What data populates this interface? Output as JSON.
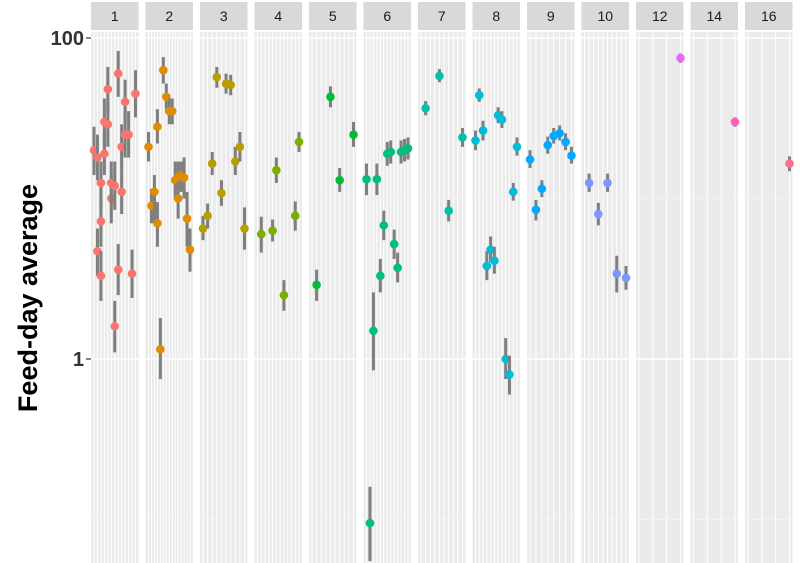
{
  "chart_data": {
    "type": "scatter",
    "title": "",
    "xlabel": "",
    "ylabel": "Feed-day average",
    "y_scale": "log10",
    "ylim": [
      0.05,
      180
    ],
    "y_ticks": [
      {
        "value": 1,
        "label": "1"
      },
      {
        "value": 100,
        "label": "100"
      }
    ],
    "grid": true,
    "legend": "none",
    "error_bar_color": "#7f7f7f",
    "panel_background": "#ebebeb",
    "strip_background": "#d9d9d9",
    "facets": [
      {
        "label": "1",
        "color": "#F8766D",
        "points": [
          {
            "x": 1,
            "y": 20,
            "lo": 14,
            "hi": 28
          },
          {
            "x": 2,
            "y": 18,
            "lo": 13,
            "hi": 25
          },
          {
            "x": 2,
            "y": 4.7,
            "lo": 3.3,
            "hi": 6.5
          },
          {
            "x": 3,
            "y": 7.2,
            "lo": 5,
            "hi": 10.5
          },
          {
            "x": 3,
            "y": 12.5,
            "lo": 9,
            "hi": 17
          },
          {
            "x": 3,
            "y": 3.3,
            "lo": 2.3,
            "hi": 4.7
          },
          {
            "x": 4,
            "y": 30,
            "lo": 21,
            "hi": 42
          },
          {
            "x": 4,
            "y": 19,
            "lo": 14,
            "hi": 26
          },
          {
            "x": 5,
            "y": 48,
            "lo": 34,
            "hi": 66
          },
          {
            "x": 5,
            "y": 29,
            "lo": 21,
            "hi": 40
          },
          {
            "x": 6,
            "y": 10,
            "lo": 7,
            "hi": 14
          },
          {
            "x": 6,
            "y": 12.5,
            "lo": 9,
            "hi": 17
          },
          {
            "x": 7,
            "y": 12,
            "lo": 8.5,
            "hi": 17
          },
          {
            "x": 7,
            "y": 1.6,
            "lo": 1.1,
            "hi": 2.3
          },
          {
            "x": 8,
            "y": 3.6,
            "lo": 2.5,
            "hi": 5.2
          },
          {
            "x": 8,
            "y": 60,
            "lo": 43,
            "hi": 83
          },
          {
            "x": 9,
            "y": 11,
            "lo": 8,
            "hi": 15
          },
          {
            "x": 9,
            "y": 21,
            "lo": 15,
            "hi": 29
          },
          {
            "x": 10,
            "y": 40,
            "lo": 29,
            "hi": 55
          },
          {
            "x": 10,
            "y": 25,
            "lo": 18,
            "hi": 35
          },
          {
            "x": 11,
            "y": 25,
            "lo": 18,
            "hi": 35
          },
          {
            "x": 12,
            "y": 3.4,
            "lo": 2.4,
            "hi": 4.8
          },
          {
            "x": 13,
            "y": 45,
            "lo": 32,
            "hi": 63
          }
        ]
      },
      {
        "label": "2",
        "color": "#DE8C00",
        "points": [
          {
            "x": 1,
            "y": 21,
            "lo": 17,
            "hi": 26
          },
          {
            "x": 2,
            "y": 9,
            "lo": 7,
            "hi": 11.5
          },
          {
            "x": 3,
            "y": 9,
            "lo": 7,
            "hi": 11.5
          },
          {
            "x": 3,
            "y": 11,
            "lo": 8.5,
            "hi": 14
          },
          {
            "x": 4,
            "y": 7,
            "lo": 5,
            "hi": 9.5
          },
          {
            "x": 4,
            "y": 28,
            "lo": 22,
            "hi": 36
          },
          {
            "x": 5,
            "y": 1.15,
            "lo": 0.75,
            "hi": 1.8
          },
          {
            "x": 6,
            "y": 63,
            "lo": 52,
            "hi": 76
          },
          {
            "x": 7,
            "y": 43,
            "lo": 36,
            "hi": 52
          },
          {
            "x": 8,
            "y": 35,
            "lo": 29,
            "hi": 42
          },
          {
            "x": 9,
            "y": 35,
            "lo": 29,
            "hi": 42
          },
          {
            "x": 10,
            "y": 13,
            "lo": 10,
            "hi": 17
          },
          {
            "x": 11,
            "y": 10,
            "lo": 7.5,
            "hi": 13
          },
          {
            "x": 11,
            "y": 13.5,
            "lo": 11,
            "hi": 17
          },
          {
            "x": 12,
            "y": 14,
            "lo": 11,
            "hi": 17
          },
          {
            "x": 13,
            "y": 13.5,
            "lo": 10,
            "hi": 18
          },
          {
            "x": 14,
            "y": 7.5,
            "lo": 5,
            "hi": 11
          },
          {
            "x": 15,
            "y": 4.8,
            "lo": 3.5,
            "hi": 6.5
          }
        ]
      },
      {
        "label": "3",
        "color": "#B79F00",
        "points": [
          {
            "x": 1,
            "y": 6.5,
            "lo": 5.5,
            "hi": 7.8
          },
          {
            "x": 2,
            "y": 7.8,
            "lo": 6.5,
            "hi": 9.3
          },
          {
            "x": 3,
            "y": 16.5,
            "lo": 14,
            "hi": 19.5
          },
          {
            "x": 4,
            "y": 57,
            "lo": 49,
            "hi": 66
          },
          {
            "x": 5,
            "y": 10.8,
            "lo": 9,
            "hi": 13
          },
          {
            "x": 6,
            "y": 52,
            "lo": 45,
            "hi": 60
          },
          {
            "x": 7,
            "y": 51,
            "lo": 44,
            "hi": 59
          },
          {
            "x": 8,
            "y": 17,
            "lo": 14,
            "hi": 21
          },
          {
            "x": 9,
            "y": 21,
            "lo": 17,
            "hi": 26
          },
          {
            "x": 10,
            "y": 6.5,
            "lo": 4.8,
            "hi": 8.8
          }
        ]
      },
      {
        "label": "4",
        "color": "#7CAE00",
        "points": [
          {
            "x": 2,
            "y": 6,
            "lo": 4.6,
            "hi": 7.7
          },
          {
            "x": 5,
            "y": 6.3,
            "lo": 5.4,
            "hi": 7.4
          },
          {
            "x": 6,
            "y": 15,
            "lo": 12.5,
            "hi": 18
          },
          {
            "x": 8,
            "y": 2.5,
            "lo": 2,
            "hi": 3.1
          },
          {
            "x": 11,
            "y": 7.8,
            "lo": 6.3,
            "hi": 9.6
          },
          {
            "x": 12,
            "y": 22.5,
            "lo": 19.5,
            "hi": 26
          }
        ]
      },
      {
        "label": "5",
        "color": "#00BA38",
        "points": [
          {
            "x": 2,
            "y": 2.9,
            "lo": 2.3,
            "hi": 3.6
          },
          {
            "x": 5,
            "y": 43,
            "lo": 37,
            "hi": 50
          },
          {
            "x": 7,
            "y": 13,
            "lo": 11,
            "hi": 15.5
          },
          {
            "x": 10,
            "y": 25,
            "lo": 21,
            "hi": 30
          }
        ]
      },
      {
        "label": "6",
        "color": "#00BF7D",
        "points": [
          {
            "x": 1,
            "y": 13.2,
            "lo": 10.5,
            "hi": 16.5
          },
          {
            "x": 2,
            "y": 0.095,
            "lo": 0.055,
            "hi": 0.16
          },
          {
            "x": 3,
            "y": 1.5,
            "lo": 0.85,
            "hi": 2.6
          },
          {
            "x": 4,
            "y": 13.2,
            "lo": 10.5,
            "hi": 16.5
          },
          {
            "x": 5,
            "y": 3.3,
            "lo": 2.6,
            "hi": 4.2
          },
          {
            "x": 6,
            "y": 6.8,
            "lo": 5.5,
            "hi": 8.4
          },
          {
            "x": 7,
            "y": 19,
            "lo": 16,
            "hi": 22.5
          },
          {
            "x": 8,
            "y": 19.5,
            "lo": 16.5,
            "hi": 23
          },
          {
            "x": 9,
            "y": 5.2,
            "lo": 4.2,
            "hi": 6.4
          },
          {
            "x": 10,
            "y": 3.7,
            "lo": 3,
            "hi": 4.6
          },
          {
            "x": 11,
            "y": 19.5,
            "lo": 16.5,
            "hi": 23
          },
          {
            "x": 12,
            "y": 20,
            "lo": 17,
            "hi": 23.5
          },
          {
            "x": 13,
            "y": 20.5,
            "lo": 17.5,
            "hi": 24
          }
        ]
      },
      {
        "label": "7",
        "color": "#00C1A3",
        "points": [
          {
            "x": 2,
            "y": 36.5,
            "lo": 33,
            "hi": 40.5
          },
          {
            "x": 5,
            "y": 58,
            "lo": 53,
            "hi": 64
          },
          {
            "x": 7,
            "y": 8.4,
            "lo": 7.2,
            "hi": 9.8
          },
          {
            "x": 10,
            "y": 24,
            "lo": 21,
            "hi": 27.5
          }
        ]
      },
      {
        "label": "8",
        "color": "#00BCD8",
        "points": [
          {
            "x": 1,
            "y": 23,
            "lo": 20,
            "hi": 26.5
          },
          {
            "x": 2,
            "y": 44,
            "lo": 40,
            "hi": 48.5
          },
          {
            "x": 3,
            "y": 26.5,
            "lo": 23,
            "hi": 30.5
          },
          {
            "x": 4,
            "y": 3.8,
            "lo": 3.1,
            "hi": 4.7
          },
          {
            "x": 5,
            "y": 4.8,
            "lo": 4,
            "hi": 5.8
          },
          {
            "x": 6,
            "y": 4.1,
            "lo": 3.4,
            "hi": 5
          },
          {
            "x": 7,
            "y": 33,
            "lo": 29.5,
            "hi": 37
          },
          {
            "x": 8,
            "y": 31,
            "lo": 27.5,
            "hi": 35
          },
          {
            "x": 9,
            "y": 1,
            "lo": 0.75,
            "hi": 1.35
          },
          {
            "x": 10,
            "y": 0.8,
            "lo": 0.6,
            "hi": 1.05
          },
          {
            "x": 11,
            "y": 11,
            "lo": 9.7,
            "hi": 12.5
          },
          {
            "x": 12,
            "y": 21,
            "lo": 18.5,
            "hi": 24
          }
        ]
      },
      {
        "label": "9",
        "color": "#00A9FF",
        "points": [
          {
            "x": 1,
            "y": 17.5,
            "lo": 15.5,
            "hi": 20
          },
          {
            "x": 2,
            "y": 8.5,
            "lo": 7.3,
            "hi": 9.8
          },
          {
            "x": 3,
            "y": 11.5,
            "lo": 10.2,
            "hi": 13
          },
          {
            "x": 4,
            "y": 21.5,
            "lo": 19,
            "hi": 24.3
          },
          {
            "x": 5,
            "y": 24.5,
            "lo": 22,
            "hi": 27.5
          },
          {
            "x": 6,
            "y": 25.5,
            "lo": 23,
            "hi": 28.5
          },
          {
            "x": 7,
            "y": 22.5,
            "lo": 20,
            "hi": 25.5
          },
          {
            "x": 8,
            "y": 18.5,
            "lo": 16.5,
            "hi": 21
          }
        ]
      },
      {
        "label": "10",
        "color": "#7F96FF",
        "points": [
          {
            "x": 2,
            "y": 12.5,
            "lo": 11,
            "hi": 14.3
          },
          {
            "x": 4,
            "y": 8,
            "lo": 6.8,
            "hi": 9.4
          },
          {
            "x": 6,
            "y": 12.5,
            "lo": 11,
            "hi": 14.3
          },
          {
            "x": 8,
            "y": 3.4,
            "lo": 2.6,
            "hi": 4.4
          },
          {
            "x": 10,
            "y": 3.2,
            "lo": 2.7,
            "hi": 3.8
          }
        ]
      },
      {
        "label": "12",
        "color": "#E76BF3",
        "points": [
          {
            "x": 4,
            "y": 75,
            "lo": 70,
            "hi": 80
          }
        ]
      },
      {
        "label": "14",
        "color": "#FF62BC",
        "points": [
          {
            "x": 4,
            "y": 30,
            "lo": 28,
            "hi": 32
          }
        ]
      },
      {
        "label": "16",
        "color": "#FF6C90",
        "points": [
          {
            "x": 4,
            "y": 16.5,
            "lo": 14.8,
            "hi": 18.3
          }
        ]
      }
    ]
  }
}
